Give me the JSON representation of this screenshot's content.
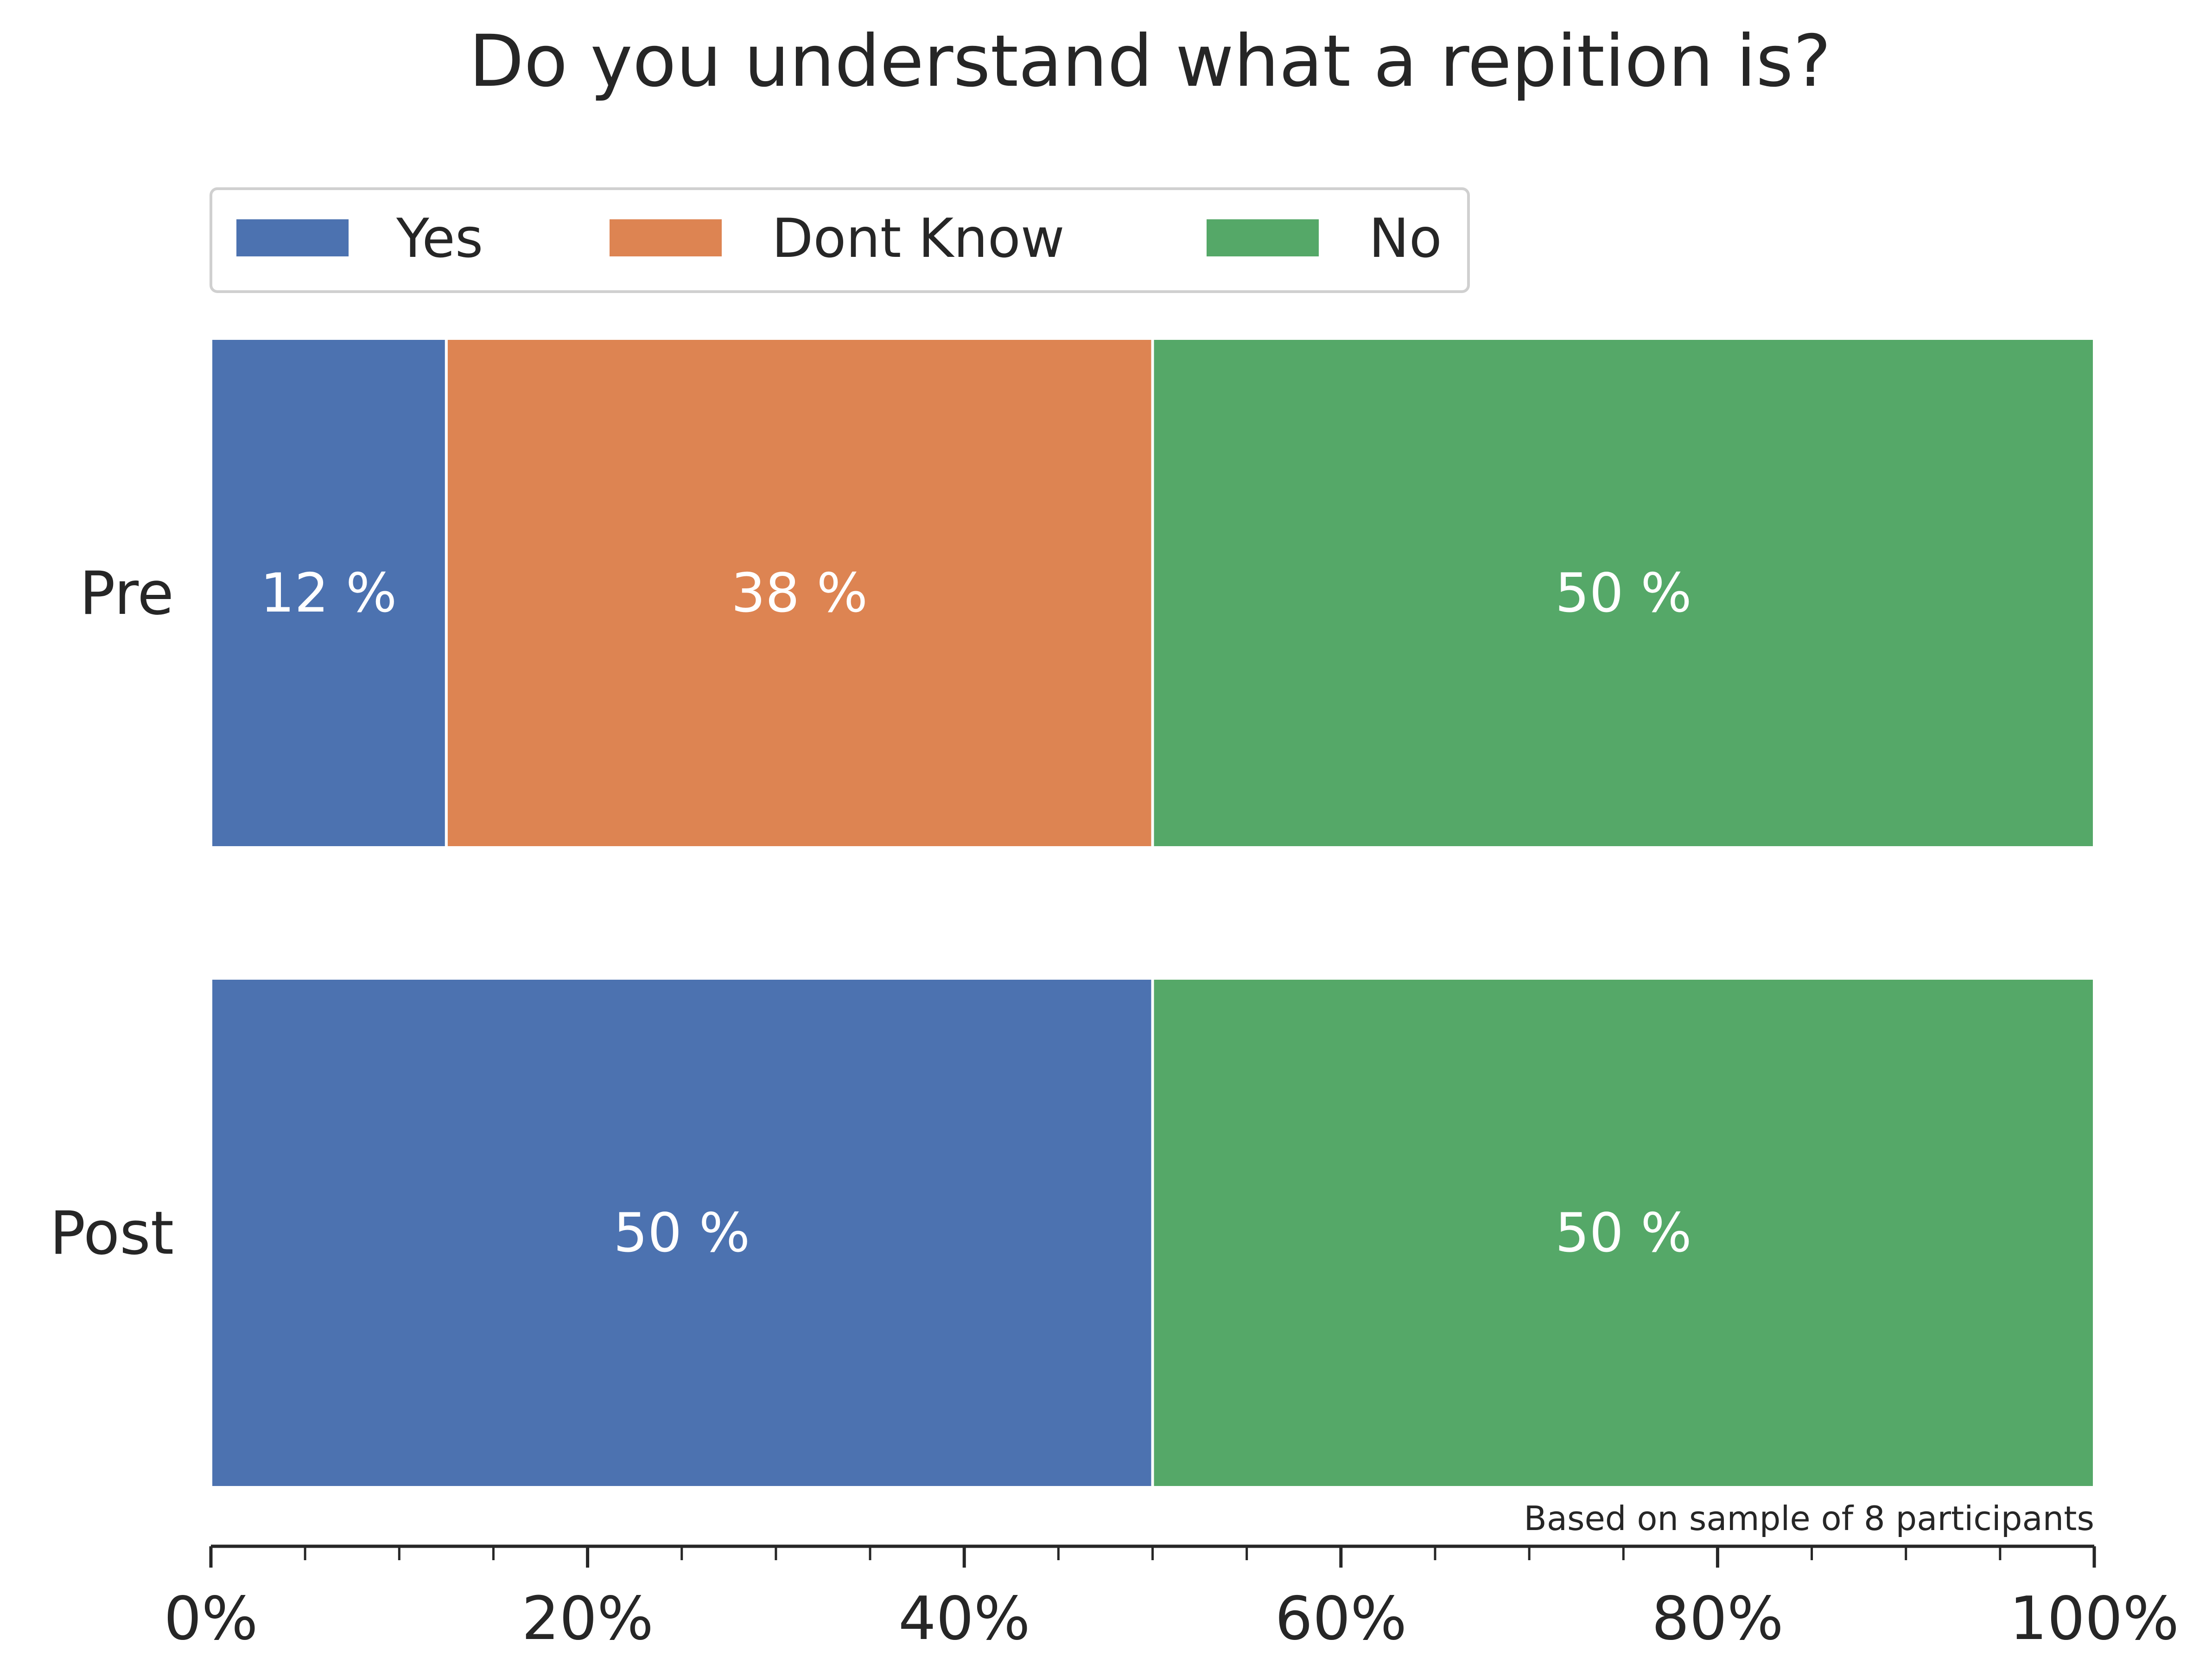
{
  "chart_data": {
    "type": "bar",
    "orientation": "horizontal",
    "stacked": true,
    "title": "Do you understand what a repition is?",
    "categories": [
      "Pre",
      "Post"
    ],
    "series": [
      {
        "name": "Yes",
        "values": [
          12.5,
          50
        ],
        "labels": [
          "12 %",
          "50 %"
        ],
        "color": "#4c72b0"
      },
      {
        "name": "Dont Know",
        "values": [
          37.5,
          0
        ],
        "labels": [
          "38 %",
          ""
        ],
        "color": "#dd8452"
      },
      {
        "name": "No",
        "values": [
          50,
          50
        ],
        "labels": [
          "50 %",
          "50 %"
        ],
        "color": "#55a868"
      }
    ],
    "xlim": [
      0,
      100
    ],
    "xticks": [
      0,
      20,
      40,
      60,
      80,
      100
    ],
    "xtick_labels": [
      "0%",
      "20%",
      "40%",
      "60%",
      "80%",
      "100%"
    ],
    "minor_tick_step": 5,
    "grid": false,
    "legend_position": "top-left",
    "note": "Based on sample of 8 participants"
  }
}
